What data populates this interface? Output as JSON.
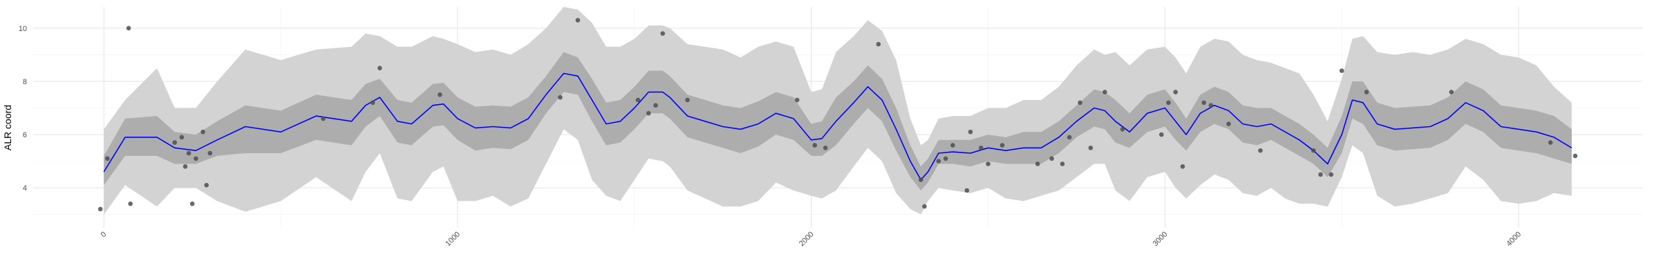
{
  "chart_data": {
    "type": "line",
    "title": "",
    "xlabel": "",
    "ylabel": "ALR coord",
    "xlim": [
      -200,
      4350
    ],
    "ylim": [
      2.5,
      10.8
    ],
    "x_ticks": [
      0,
      1000,
      2000,
      3000,
      4000
    ],
    "x_tick_labels": [
      "0",
      "1000",
      "2000",
      "3000",
      "4000"
    ],
    "y_ticks": [
      4,
      6,
      8,
      10
    ],
    "y_tick_labels": [
      "4",
      "6",
      "8",
      "10"
    ],
    "grid": true,
    "colors": {
      "mean_line": "#0000ff",
      "inner_band": "#adadad",
      "outer_band": "#d3d3d3",
      "points": "#4d4d4d",
      "grid": "#e6e6e6"
    },
    "series": [
      {
        "role": "mean",
        "x": [
          0,
          60,
          150,
          200,
          260,
          320,
          400,
          500,
          600,
          700,
          740,
          780,
          830,
          870,
          930,
          960,
          1000,
          1050,
          1100,
          1150,
          1200,
          1250,
          1300,
          1340,
          1380,
          1420,
          1460,
          1500,
          1540,
          1580,
          1600,
          1650,
          1700,
          1750,
          1800,
          1850,
          1900,
          1950,
          2000,
          2030,
          2070,
          2120,
          2160,
          2200,
          2240,
          2280,
          2310,
          2330,
          2360,
          2400,
          2450,
          2500,
          2550,
          2600,
          2650,
          2700,
          2750,
          2800,
          2830,
          2860,
          2900,
          2950,
          3000,
          3030,
          3060,
          3100,
          3140,
          3180,
          3220,
          3260,
          3300,
          3340,
          3380,
          3420,
          3460,
          3500,
          3530,
          3560,
          3600,
          3650,
          3700,
          3750,
          3800,
          3850,
          3900,
          3950,
          4000,
          4050,
          4100,
          4150
        ],
        "y": [
          4.6,
          5.9,
          5.9,
          5.5,
          5.4,
          5.8,
          6.3,
          6.1,
          6.7,
          6.5,
          7.1,
          7.4,
          6.5,
          6.4,
          7.1,
          7.15,
          6.6,
          6.25,
          6.3,
          6.25,
          6.6,
          7.5,
          8.3,
          8.2,
          7.3,
          6.4,
          6.5,
          7.0,
          7.6,
          7.6,
          7.4,
          6.7,
          6.5,
          6.3,
          6.2,
          6.4,
          6.8,
          6.6,
          5.8,
          5.85,
          6.5,
          7.2,
          7.8,
          7.3,
          6.2,
          5.0,
          4.3,
          4.6,
          5.3,
          5.35,
          5.3,
          5.5,
          5.4,
          5.5,
          5.5,
          5.9,
          6.5,
          7.0,
          6.9,
          6.5,
          6.1,
          6.8,
          7.0,
          6.5,
          6.0,
          6.8,
          7.1,
          6.9,
          6.4,
          6.3,
          6.4,
          6.1,
          5.8,
          5.4,
          4.9,
          6.0,
          7.3,
          7.2,
          6.4,
          6.2,
          6.25,
          6.3,
          6.6,
          7.2,
          6.9,
          6.3,
          6.2,
          6.1,
          5.9,
          5.5
        ]
      },
      {
        "role": "inner_band",
        "x": [
          0,
          60,
          150,
          200,
          260,
          320,
          400,
          500,
          600,
          700,
          740,
          780,
          830,
          870,
          930,
          960,
          1000,
          1050,
          1100,
          1150,
          1200,
          1250,
          1300,
          1340,
          1380,
          1420,
          1460,
          1500,
          1540,
          1580,
          1600,
          1650,
          1700,
          1750,
          1800,
          1850,
          1900,
          1950,
          2000,
          2030,
          2070,
          2120,
          2160,
          2200,
          2240,
          2280,
          2310,
          2330,
          2360,
          2400,
          2450,
          2500,
          2550,
          2600,
          2650,
          2700,
          2750,
          2800,
          2830,
          2860,
          2900,
          2950,
          3000,
          3030,
          3060,
          3100,
          3140,
          3180,
          3220,
          3260,
          3300,
          3340,
          3380,
          3420,
          3460,
          3500,
          3530,
          3560,
          3600,
          3650,
          3700,
          3750,
          3800,
          3850,
          3900,
          3950,
          4000,
          4050,
          4100,
          4150
        ],
        "lower": [
          4.1,
          5.2,
          5.2,
          4.9,
          4.9,
          5.2,
          5.3,
          5.3,
          5.8,
          5.6,
          6.3,
          6.7,
          5.7,
          5.6,
          6.3,
          6.35,
          5.8,
          5.4,
          5.5,
          5.45,
          5.8,
          6.8,
          7.6,
          7.5,
          6.5,
          5.6,
          5.7,
          6.2,
          6.8,
          6.8,
          6.6,
          5.9,
          5.7,
          5.5,
          5.3,
          5.55,
          6.0,
          5.8,
          5.2,
          5.2,
          5.6,
          6.4,
          7.0,
          6.5,
          5.4,
          4.4,
          3.9,
          4.2,
          4.9,
          4.9,
          4.8,
          5.0,
          4.9,
          4.9,
          4.9,
          5.3,
          5.9,
          6.3,
          6.2,
          5.7,
          5.5,
          6.1,
          6.3,
          5.8,
          5.4,
          6.1,
          6.4,
          6.2,
          5.7,
          5.6,
          5.8,
          5.5,
          5.2,
          4.9,
          4.4,
          5.3,
          6.6,
          6.4,
          5.6,
          5.4,
          5.45,
          5.5,
          5.8,
          6.4,
          6.1,
          5.5,
          5.4,
          5.3,
          5.1,
          4.9
        ],
        "upper": [
          5.2,
          6.6,
          6.7,
          6.1,
          6.0,
          6.5,
          7.1,
          6.9,
          7.5,
          7.3,
          7.9,
          8.1,
          7.3,
          7.2,
          7.9,
          7.95,
          7.4,
          7.05,
          7.1,
          7.05,
          7.4,
          8.2,
          9.1,
          8.9,
          8.1,
          7.2,
          7.3,
          7.8,
          8.4,
          8.4,
          8.2,
          7.5,
          7.3,
          7.1,
          7.0,
          7.25,
          7.6,
          7.4,
          6.4,
          6.5,
          7.4,
          8.0,
          8.6,
          8.1,
          7.0,
          5.6,
          4.8,
          5.1,
          5.8,
          5.8,
          5.8,
          6.0,
          5.9,
          6.1,
          6.1,
          6.5,
          7.1,
          7.7,
          7.6,
          7.3,
          6.8,
          7.5,
          7.7,
          7.2,
          6.6,
          7.5,
          7.8,
          7.6,
          7.1,
          7.0,
          7.0,
          6.7,
          6.4,
          6.0,
          5.5,
          6.7,
          8.0,
          8.0,
          7.2,
          7.0,
          7.05,
          7.1,
          7.4,
          8.0,
          7.7,
          7.1,
          7.0,
          6.9,
          6.7,
          6.2
        ]
      },
      {
        "role": "outer_band",
        "x": [
          0,
          60,
          150,
          200,
          260,
          320,
          400,
          500,
          600,
          700,
          740,
          780,
          830,
          870,
          930,
          960,
          1000,
          1050,
          1100,
          1150,
          1200,
          1250,
          1300,
          1340,
          1380,
          1420,
          1460,
          1500,
          1540,
          1580,
          1600,
          1650,
          1700,
          1750,
          1800,
          1850,
          1900,
          1950,
          2000,
          2030,
          2070,
          2120,
          2160,
          2200,
          2240,
          2280,
          2310,
          2330,
          2360,
          2400,
          2450,
          2500,
          2550,
          2600,
          2650,
          2700,
          2750,
          2800,
          2830,
          2860,
          2900,
          2950,
          3000,
          3030,
          3060,
          3100,
          3140,
          3180,
          3220,
          3260,
          3300,
          3340,
          3380,
          3420,
          3460,
          3500,
          3530,
          3560,
          3600,
          3650,
          3700,
          3750,
          3800,
          3850,
          3900,
          3950,
          4000,
          4050,
          4100,
          4150
        ],
        "lower": [
          3.0,
          4.1,
          3.3,
          4.0,
          4.0,
          3.5,
          3.1,
          3.5,
          4.4,
          3.5,
          4.6,
          5.3,
          3.6,
          3.5,
          4.6,
          4.8,
          3.5,
          3.5,
          3.7,
          3.3,
          3.6,
          4.9,
          6.2,
          5.8,
          4.3,
          3.7,
          3.5,
          4.3,
          5.1,
          5.0,
          4.8,
          3.9,
          3.6,
          3.3,
          3.3,
          3.5,
          4.2,
          3.9,
          3.7,
          3.6,
          3.9,
          4.8,
          5.5,
          5.0,
          3.8,
          3.2,
          3.0,
          3.5,
          4.0,
          3.9,
          3.8,
          4.0,
          3.6,
          3.5,
          3.7,
          3.9,
          4.4,
          4.9,
          4.9,
          3.9,
          3.5,
          4.4,
          4.6,
          4.0,
          3.6,
          4.1,
          4.5,
          4.3,
          3.8,
          3.7,
          4.0,
          3.6,
          3.4,
          3.4,
          3.3,
          4.4,
          5.6,
          5.3,
          3.7,
          3.3,
          3.4,
          3.6,
          3.8,
          4.8,
          4.3,
          3.5,
          3.4,
          3.5,
          3.8,
          3.7
        ],
        "upper": [
          6.2,
          7.3,
          8.5,
          7.0,
          7.0,
          8.0,
          9.2,
          8.8,
          9.2,
          9.3,
          9.8,
          9.7,
          9.3,
          9.3,
          9.7,
          9.6,
          9.4,
          9.1,
          9.2,
          9.0,
          9.4,
          10.0,
          10.8,
          10.7,
          10.2,
          9.3,
          9.3,
          9.6,
          10.1,
          10.1,
          10.0,
          9.4,
          9.3,
          9.2,
          8.9,
          9.3,
          9.5,
          9.3,
          7.6,
          7.7,
          9.1,
          9.7,
          10.3,
          9.9,
          8.8,
          6.6,
          5.6,
          5.8,
          6.6,
          6.7,
          6.7,
          7.0,
          7.0,
          7.3,
          7.3,
          7.8,
          8.6,
          9.2,
          9.0,
          9.1,
          8.6,
          9.2,
          9.3,
          8.9,
          8.3,
          9.3,
          9.6,
          9.5,
          9.0,
          8.8,
          8.7,
          8.5,
          8.3,
          7.5,
          6.5,
          8.1,
          9.6,
          9.7,
          9.1,
          9.0,
          9.1,
          9.0,
          9.2,
          9.6,
          9.4,
          9.0,
          8.9,
          8.6,
          7.8,
          7.2
        ]
      },
      {
        "role": "observations",
        "x": [
          -10,
          10,
          70,
          75,
          200,
          220,
          230,
          240,
          250,
          260,
          280,
          290,
          300,
          620,
          760,
          780,
          950,
          1290,
          1340,
          1510,
          1540,
          1560,
          1580,
          1650,
          1960,
          2010,
          2040,
          2190,
          2310,
          2320,
          2360,
          2380,
          2400,
          2440,
          2450,
          2480,
          2500,
          2540,
          2640,
          2680,
          2710,
          2730,
          2760,
          2790,
          2830,
          2880,
          2990,
          3010,
          3030,
          3050,
          3110,
          3130,
          3180,
          3270,
          3420,
          3440,
          3470,
          3500,
          3570,
          3810,
          4090,
          4160
        ],
        "y": [
          3.2,
          5.1,
          10.0,
          3.4,
          5.7,
          5.9,
          4.8,
          5.3,
          3.4,
          5.1,
          6.1,
          4.1,
          5.3,
          6.6,
          7.2,
          8.5,
          7.5,
          7.4,
          10.3,
          7.3,
          6.8,
          7.1,
          9.8,
          7.3,
          7.3,
          5.6,
          5.5,
          9.4,
          4.3,
          3.3,
          5.0,
          5.1,
          5.6,
          3.9,
          6.1,
          5.5,
          4.9,
          5.6,
          4.9,
          5.1,
          4.9,
          5.9,
          7.2,
          5.5,
          7.6,
          6.2,
          6.0,
          7.2,
          7.6,
          4.8,
          7.2,
          7.1,
          6.4,
          5.4,
          5.4,
          4.5,
          4.5,
          8.4,
          7.6,
          7.6,
          5.7,
          5.2
        ]
      }
    ]
  }
}
